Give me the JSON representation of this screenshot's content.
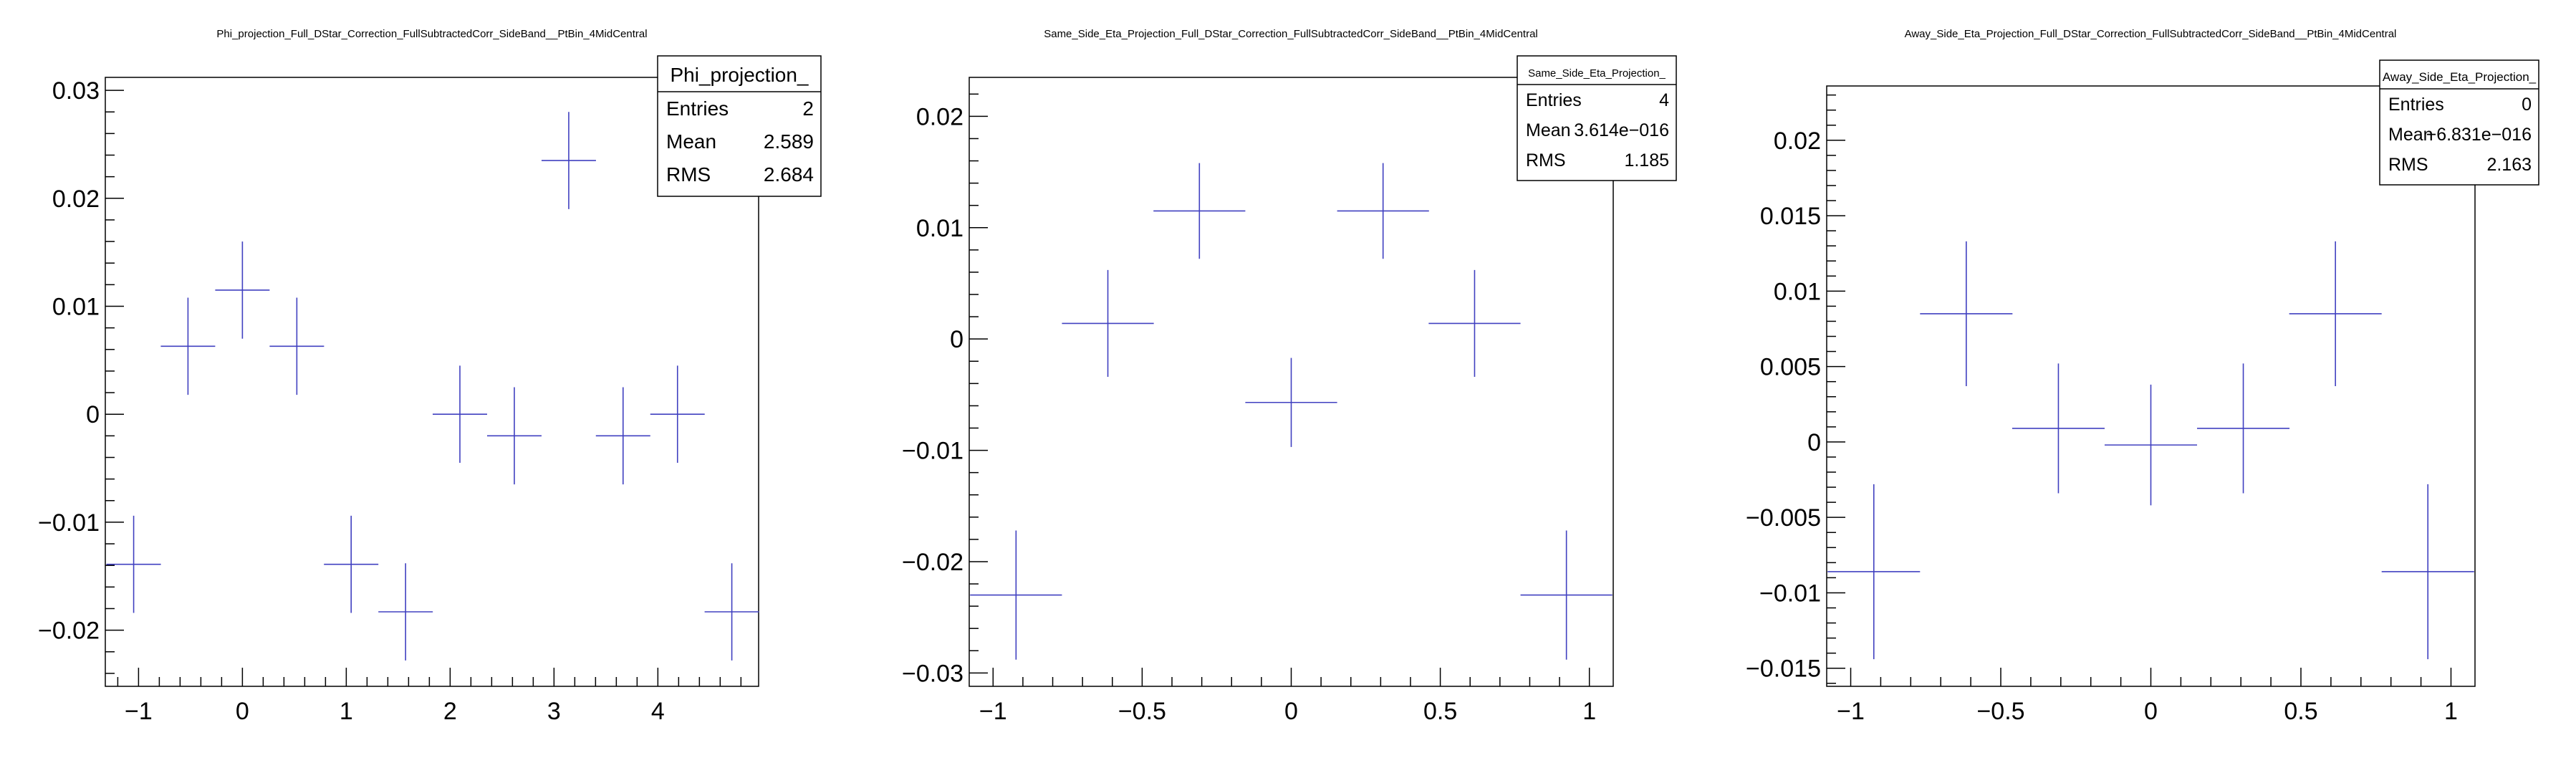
{
  "chart_data": [
    {
      "type": "scatter",
      "title": "Phi_projection_Full_DStar_Correction_FullSubtractedCorr_SideBand__PtBin_4MidCentral",
      "xlim": [
        -1.32,
        4.97
      ],
      "ylim": [
        -0.0252,
        0.0312
      ],
      "xticks": [
        -1,
        0,
        1,
        2,
        3,
        4
      ],
      "xtick_labels": [
        "−1",
        "0",
        "1",
        "2",
        "3",
        "4"
      ],
      "yticks": [
        -0.02,
        -0.01,
        0,
        0.01,
        0.02,
        0.03
      ],
      "ytick_labels": [
        "−0.02",
        "−0.01",
        "0",
        "0.01",
        "0.02",
        "0.03"
      ],
      "bin_half_width": 0.262,
      "x": [
        -1.047,
        -0.524,
        0.0,
        0.524,
        1.047,
        1.571,
        2.094,
        2.618,
        3.142,
        3.665,
        4.189,
        4.712
      ],
      "y": [
        -0.0139,
        0.0063,
        0.0115,
        0.0063,
        -0.0139,
        -0.0183,
        0.0,
        -0.002,
        0.0235,
        -0.002,
        0.0,
        -0.0183
      ],
      "yerr": [
        0.0045,
        0.0045,
        0.0045,
        0.0045,
        0.0045,
        0.0045,
        0.0045,
        0.0045,
        0.0045,
        0.0045,
        0.0045,
        0.0045
      ],
      "stats": {
        "name": "Phi_projection_",
        "rows": [
          {
            "label": "Entries",
            "value": "2"
          },
          {
            "label": "Mean",
            "value": "2.589"
          },
          {
            "label": "RMS",
            "value": "2.684"
          }
        ]
      }
    },
    {
      "type": "scatter",
      "title": "Same_Side_Eta_Projection_Full_DStar_Correction_FullSubtractedCorr_SideBand__PtBin_4MidCentral",
      "xlim": [
        -1.08,
        1.08
      ],
      "ylim": [
        -0.0312,
        0.0235
      ],
      "xticks": [
        -1,
        -0.5,
        0,
        0.5,
        1
      ],
      "xtick_labels": [
        "−1",
        "−0.5",
        "0",
        "0.5",
        "1"
      ],
      "yticks": [
        -0.03,
        -0.02,
        -0.01,
        0,
        0.01,
        0.02
      ],
      "ytick_labels": [
        "−0.03",
        "−0.02",
        "−0.01",
        "0",
        "0.01",
        "0.02"
      ],
      "bin_half_width": 0.154,
      "x": [
        -0.923,
        -0.615,
        -0.308,
        0.0,
        0.308,
        0.615,
        0.923
      ],
      "y": [
        -0.023,
        0.0014,
        0.0115,
        -0.0057,
        0.0115,
        0.0014,
        -0.023
      ],
      "yerr": [
        0.0058,
        0.0048,
        0.0043,
        0.004,
        0.0043,
        0.0048,
        0.0058
      ],
      "stats": {
        "name": "Same_Side_Eta_Projection_",
        "rows": [
          {
            "label": "Entries",
            "value": "4"
          },
          {
            "label": "Mean",
            "value": "3.614e−016"
          },
          {
            "label": "RMS",
            "value": "1.185"
          }
        ]
      }
    },
    {
      "type": "scatter",
      "title": "Away_Side_Eta_Projection_Full_DStar_Correction_FullSubtractedCorr_SideBand__PtBin_4MidCentral",
      "xlim": [
        -1.08,
        1.08
      ],
      "ylim": [
        -0.0162,
        0.0236
      ],
      "xticks": [
        -1,
        -0.5,
        0,
        0.5,
        1
      ],
      "xtick_labels": [
        "−1",
        "−0.5",
        "0",
        "0.5",
        "1"
      ],
      "yticks": [
        -0.015,
        -0.01,
        -0.005,
        0,
        0.005,
        0.01,
        0.015,
        0.02
      ],
      "ytick_labels": [
        "−0.015",
        "−0.01",
        "−0.005",
        "0",
        "0.005",
        "0.01",
        "0.015",
        "0.02"
      ],
      "bin_half_width": 0.154,
      "x": [
        -0.923,
        -0.615,
        -0.308,
        0.0,
        0.308,
        0.615,
        0.923
      ],
      "y": [
        -0.0086,
        0.0085,
        0.0009,
        -0.0002,
        0.0009,
        0.0085,
        -0.0086
      ],
      "yerr": [
        0.0058,
        0.0048,
        0.0043,
        0.004,
        0.0043,
        0.0048,
        0.0058
      ],
      "stats": {
        "name": "Away_Side_Eta_Projection_",
        "rows": [
          {
            "label": "Entries",
            "value": "0"
          },
          {
            "label": "Mean",
            "value": "−6.831e−016"
          },
          {
            "label": "RMS",
            "value": "2.163"
          }
        ]
      }
    }
  ],
  "colors": {
    "marker": "#4040c0",
    "axis": "#000000",
    "background": "#ffffff"
  }
}
